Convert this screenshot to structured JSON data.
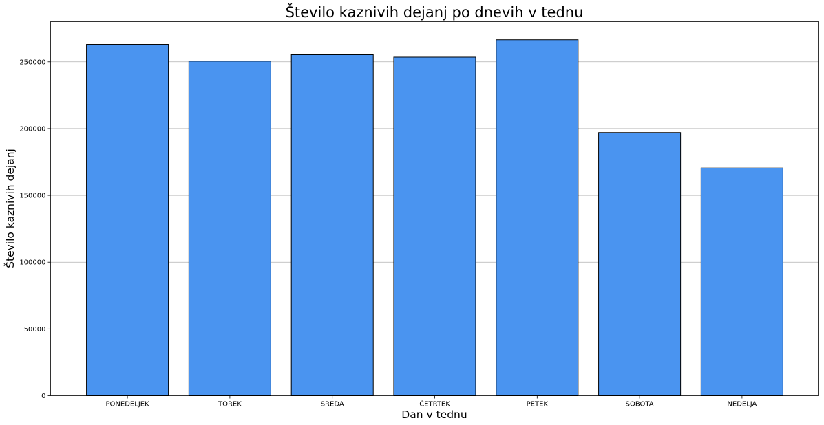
{
  "chart_data": {
    "type": "bar",
    "title": "Število kaznivih dejanj po dnevih v tednu",
    "xlabel": "Dan v tednu",
    "ylabel": "Število kaznivih dejanj",
    "categories": [
      "PONEDELJEK",
      "TOREK",
      "SREDA",
      "ČETRTEK",
      "PETEK",
      "SOBOTA",
      "NEDELJA"
    ],
    "values": [
      263000,
      250500,
      255300,
      253500,
      266500,
      197000,
      170500
    ],
    "ylim": [
      0,
      280000
    ],
    "yticks": [
      0,
      50000,
      100000,
      150000,
      200000,
      250000
    ],
    "ytick_labels": [
      "0",
      "50000",
      "100000",
      "150000",
      "200000",
      "250000"
    ],
    "grid": "y",
    "bar_color": "#4a94f0",
    "bar_edge_color": "#000000"
  }
}
